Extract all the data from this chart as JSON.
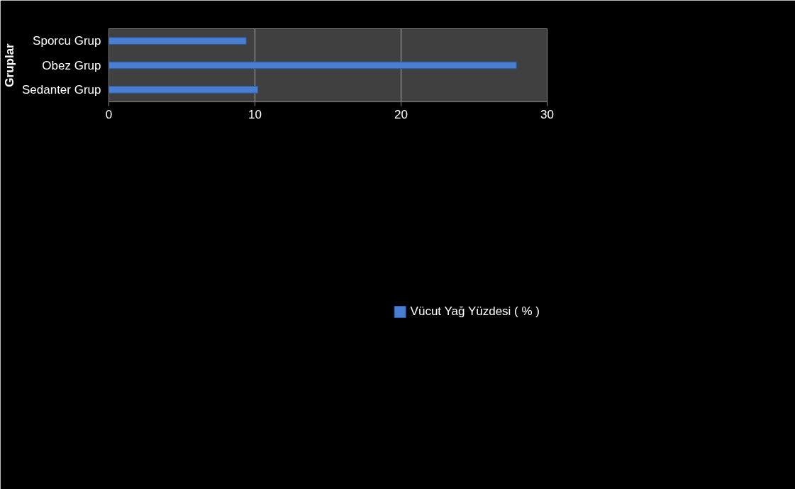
{
  "chart_data": {
    "type": "bar",
    "orientation": "horizontal",
    "ylabel": "Gruplar",
    "categories": [
      "Sporcu Grup",
      "Obez Grup",
      "Sedanter Grup"
    ],
    "series": [
      {
        "name": "Vücut Yağ Yüzdesi ( % )",
        "color": "#4a7ed0",
        "values": [
          9.4,
          27.9,
          10.2
        ]
      }
    ],
    "xlim": [
      0,
      30
    ],
    "xticks": [
      0,
      10,
      20,
      30
    ],
    "grid": "x",
    "legend": "bottom"
  }
}
